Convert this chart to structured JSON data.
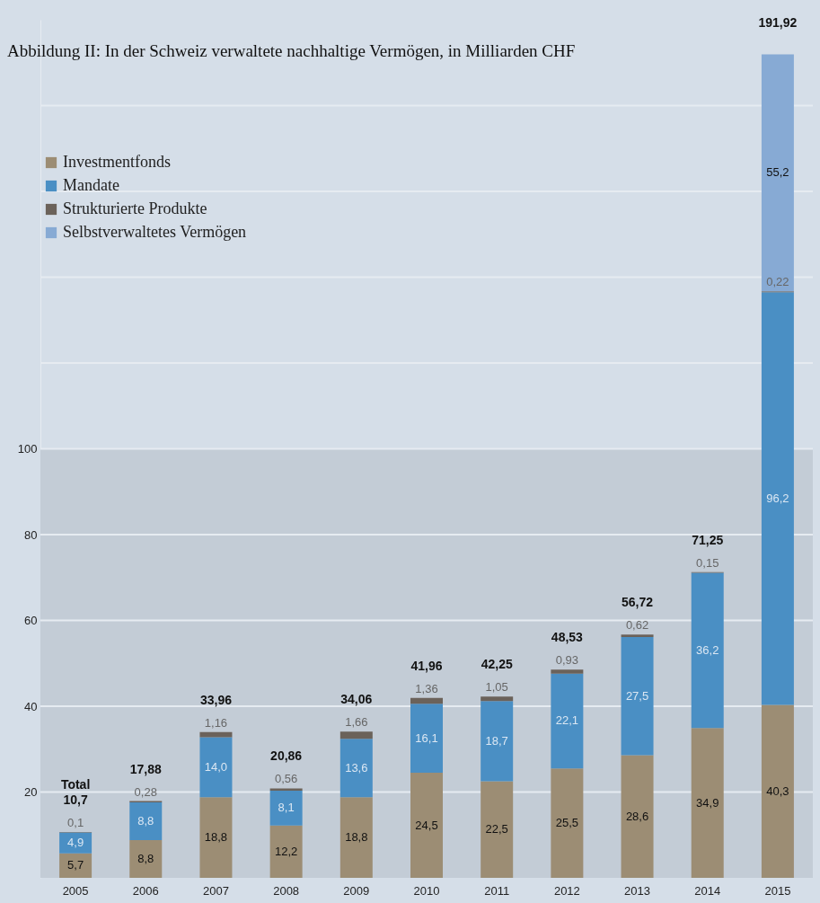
{
  "chart_data": {
    "type": "bar",
    "title": "Abbildung II: In der Schweiz verwaltete nachhaltige Vermögen, in Milliarden CHF",
    "categories": [
      "2005",
      "2006",
      "2007",
      "2008",
      "2009",
      "2010",
      "2011",
      "2012",
      "2013",
      "2014",
      "2015"
    ],
    "stacked": true,
    "series": [
      {
        "name": "Investmentfonds",
        "color": "#9c8d74",
        "values": [
          5.7,
          8.8,
          18.8,
          12.2,
          18.8,
          24.5,
          22.5,
          25.5,
          28.6,
          34.9,
          40.3
        ],
        "value_labels": [
          "5,7",
          "8,8",
          "18,8",
          "12,2",
          "18,8",
          "24,5",
          "22,5",
          "25,5",
          "28,6",
          "34,9",
          "40,3"
        ]
      },
      {
        "name": "Mandate",
        "color": "#4a8fc4",
        "values": [
          4.9,
          8.8,
          14.0,
          8.1,
          13.6,
          16.1,
          18.7,
          22.1,
          27.5,
          36.2,
          96.2
        ],
        "value_labels": [
          "4,9",
          "8,8",
          "14,0",
          "8,1",
          "13,6",
          "16,1",
          "18,7",
          "22,1",
          "27,5",
          "36,2",
          "96,2"
        ]
      },
      {
        "name": "Strukturierte Produkte",
        "color": "#6b625a",
        "values": [
          0.1,
          0.28,
          1.16,
          0.56,
          1.66,
          1.36,
          1.05,
          0.93,
          0.62,
          0.15,
          0.22
        ],
        "value_labels": [
          "0,1",
          "0,28",
          "1,16",
          "0,56",
          "1,66",
          "1,36",
          "1,05",
          "0,93",
          "0,62",
          "0,15",
          "0,22"
        ]
      },
      {
        "name": "Selbstverwaltetes Vermögen",
        "color": "#87aad4",
        "values": [
          null,
          null,
          null,
          null,
          null,
          null,
          null,
          null,
          null,
          null,
          55.2
        ],
        "value_labels": [
          null,
          null,
          null,
          null,
          null,
          null,
          null,
          null,
          null,
          null,
          "55,2"
        ]
      }
    ],
    "totals": [
      "Total\n10,7",
      "17,88",
      "33,96",
      "20,86",
      "34,06",
      "41,96",
      "42,25",
      "48,53",
      "56,72",
      "71,25",
      "191,92"
    ],
    "ylim": [
      0,
      200
    ],
    "yticks": [
      20,
      40,
      60,
      80,
      100,
      {
        "value": 120,
        "label": null
      },
      {
        "value": 140,
        "label": null
      },
      {
        "value": 160,
        "label": null
      },
      {
        "value": 180,
        "label": null
      }
    ],
    "bands": [
      {
        "axis": "y",
        "from": 0,
        "to": 100,
        "label": null,
        "color": "#c3ccd6"
      }
    ],
    "grid": "y",
    "legend": "top left"
  }
}
